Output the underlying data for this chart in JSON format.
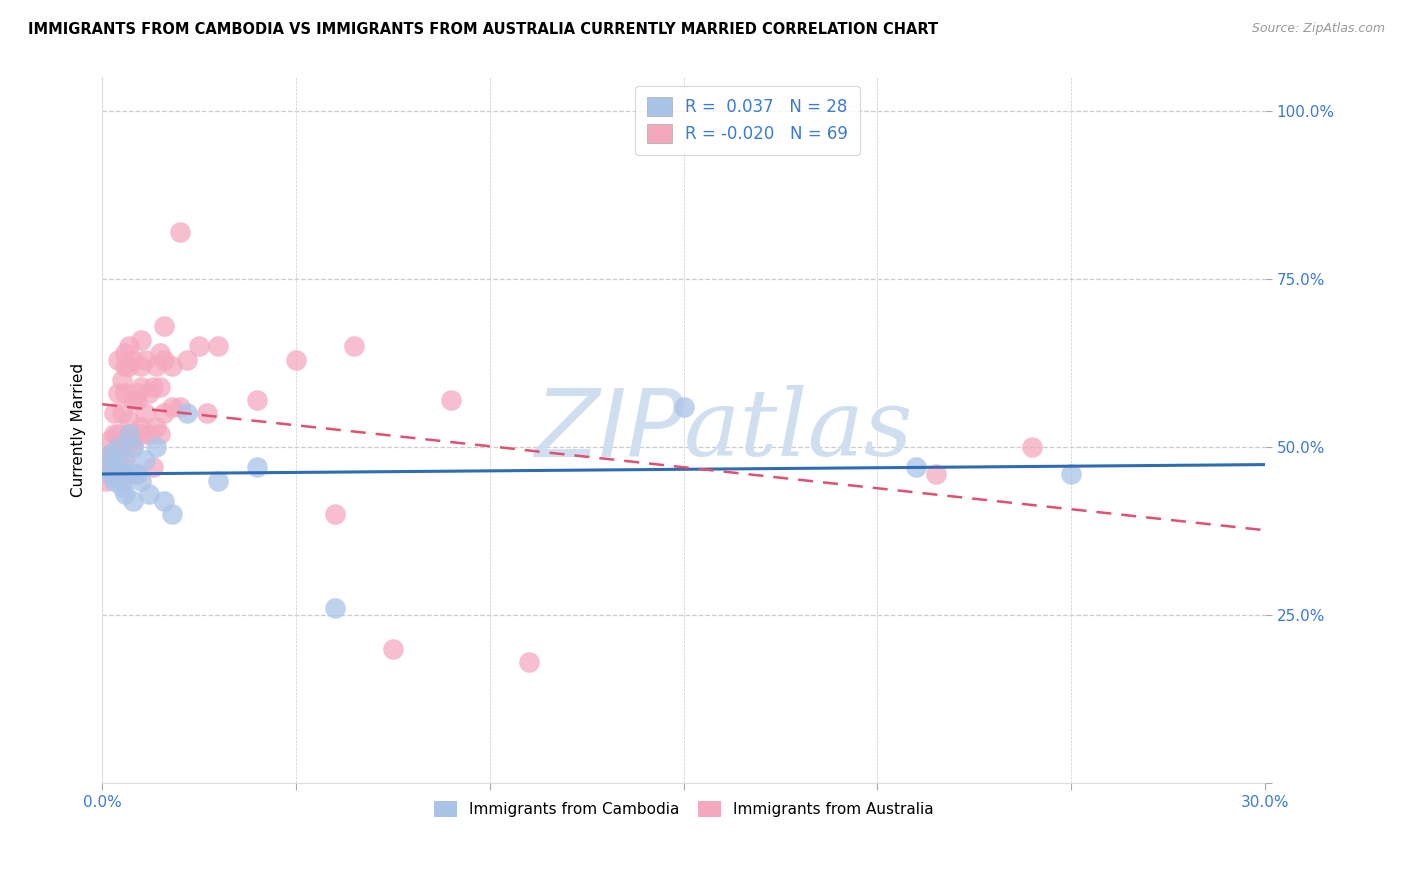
{
  "title": "IMMIGRANTS FROM CAMBODIA VS IMMIGRANTS FROM AUSTRALIA CURRENTLY MARRIED CORRELATION CHART",
  "source": "Source: ZipAtlas.com",
  "ylabel": "Currently Married",
  "xlim": [
    0.0,
    0.3
  ],
  "ylim": [
    0.0,
    1.05
  ],
  "r_cambodia": 0.037,
  "n_cambodia": 28,
  "r_australia": -0.02,
  "n_australia": 69,
  "color_cambodia": "#aac4e8",
  "color_australia": "#f4a8be",
  "line_color_cambodia": "#2e6db4",
  "line_color_australia": "#e05070",
  "legend_text_color": "#3a7bd5",
  "ytick_color": "#3a7bd5",
  "xtick_color": "#3a7bd5",
  "grid_color": "#cccccc",
  "watermark_color": "#d0dff0",
  "cambodia_x": [
    0.001,
    0.002,
    0.002,
    0.003,
    0.003,
    0.004,
    0.005,
    0.005,
    0.006,
    0.006,
    0.007,
    0.007,
    0.008,
    0.008,
    0.009,
    0.01,
    0.011,
    0.012,
    0.014,
    0.016,
    0.018,
    0.022,
    0.03,
    0.04,
    0.06,
    0.15,
    0.21,
    0.25
  ],
  "cambodia_y": [
    0.47,
    0.46,
    0.49,
    0.45,
    0.48,
    0.5,
    0.46,
    0.44,
    0.48,
    0.43,
    0.52,
    0.46,
    0.5,
    0.42,
    0.46,
    0.45,
    0.48,
    0.43,
    0.5,
    0.42,
    0.4,
    0.55,
    0.45,
    0.47,
    0.26,
    0.56,
    0.47,
    0.46
  ],
  "australia_x": [
    0.001,
    0.001,
    0.002,
    0.002,
    0.002,
    0.003,
    0.003,
    0.003,
    0.003,
    0.004,
    0.004,
    0.004,
    0.004,
    0.005,
    0.005,
    0.005,
    0.005,
    0.006,
    0.006,
    0.006,
    0.006,
    0.006,
    0.007,
    0.007,
    0.007,
    0.007,
    0.008,
    0.008,
    0.008,
    0.008,
    0.009,
    0.009,
    0.009,
    0.01,
    0.01,
    0.01,
    0.01,
    0.01,
    0.011,
    0.011,
    0.012,
    0.012,
    0.013,
    0.013,
    0.014,
    0.014,
    0.015,
    0.015,
    0.015,
    0.016,
    0.016,
    0.016,
    0.018,
    0.018,
    0.02,
    0.02,
    0.022,
    0.025,
    0.027,
    0.03,
    0.04,
    0.05,
    0.06,
    0.065,
    0.075,
    0.09,
    0.11,
    0.215,
    0.24
  ],
  "australia_y": [
    0.45,
    0.48,
    0.47,
    0.51,
    0.49,
    0.46,
    0.52,
    0.55,
    0.49,
    0.52,
    0.58,
    0.63,
    0.48,
    0.45,
    0.55,
    0.6,
    0.5,
    0.51,
    0.62,
    0.58,
    0.64,
    0.48,
    0.52,
    0.62,
    0.65,
    0.54,
    0.51,
    0.57,
    0.63,
    0.5,
    0.46,
    0.57,
    0.58,
    0.52,
    0.62,
    0.66,
    0.53,
    0.59,
    0.55,
    0.63,
    0.52,
    0.58,
    0.47,
    0.59,
    0.53,
    0.62,
    0.52,
    0.59,
    0.64,
    0.55,
    0.63,
    0.68,
    0.56,
    0.62,
    0.82,
    0.56,
    0.63,
    0.65,
    0.55,
    0.65,
    0.57,
    0.63,
    0.4,
    0.65,
    0.2,
    0.57,
    0.18,
    0.46,
    0.5
  ]
}
